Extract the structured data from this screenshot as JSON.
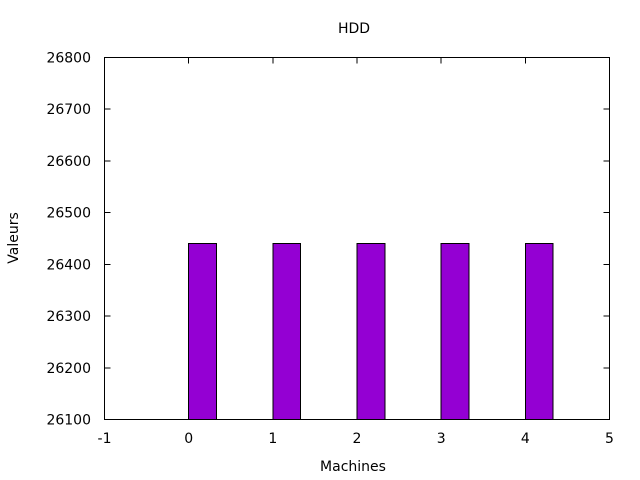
{
  "chart_data": {
    "type": "bar",
    "title": "HDD",
    "xlabel": "Machines",
    "ylabel": "Valeurs",
    "x": [
      0,
      1,
      2,
      3,
      4
    ],
    "values": [
      26440,
      26440,
      26440,
      26440,
      26440
    ],
    "xlim": [
      -1,
      5
    ],
    "ylim": [
      26100,
      26800
    ],
    "x_ticks": [
      -1,
      0,
      1,
      2,
      3,
      4,
      5
    ],
    "y_ticks": [
      26100,
      26200,
      26300,
      26400,
      26500,
      26600,
      26700,
      26800
    ],
    "x_tick_labels": [
      "-1",
      "0",
      "1",
      "2",
      "3",
      "4",
      "5"
    ],
    "y_tick_labels": [
      "26100",
      "26200",
      "26300",
      "26400",
      "26500",
      "26600",
      "26700",
      "26800"
    ],
    "bar_color": "#9400d3",
    "bar_width": 0.33,
    "grid": false,
    "legend": "none"
  }
}
